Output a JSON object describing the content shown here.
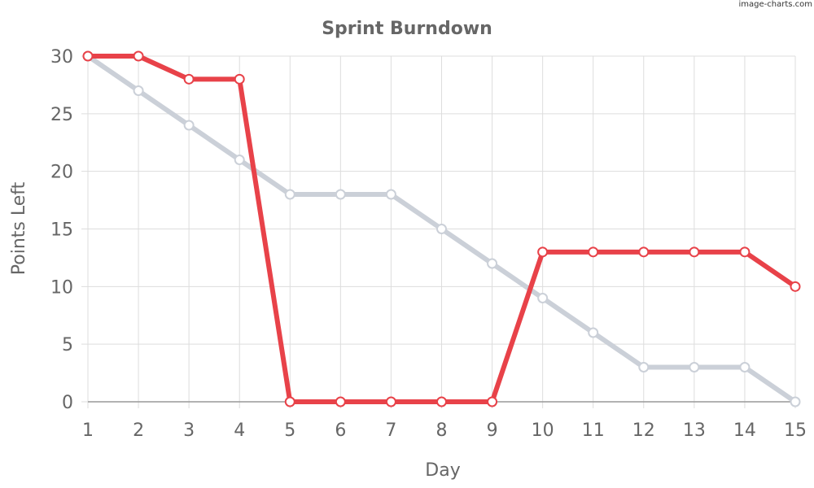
{
  "watermark": "image-charts.com",
  "chart_data": {
    "type": "line",
    "title": "Sprint Burndown",
    "xlabel": "Day",
    "ylabel": "Points Left",
    "x": [
      1,
      2,
      3,
      4,
      5,
      6,
      7,
      8,
      9,
      10,
      11,
      12,
      13,
      14,
      15
    ],
    "xlim": [
      1,
      15
    ],
    "ylim": [
      0,
      30
    ],
    "yticks": [
      0,
      5,
      10,
      15,
      20,
      25,
      30
    ],
    "grid": true,
    "legend": "none",
    "series": [
      {
        "color": "#cbd0d8",
        "values": [
          30,
          27,
          24,
          21,
          18,
          18,
          18,
          15,
          12,
          9,
          6,
          3,
          3,
          3,
          0
        ]
      },
      {
        "color": "#e84249",
        "values": [
          30,
          30,
          28,
          28,
          0,
          0,
          0,
          0,
          0,
          13,
          13,
          13,
          13,
          13,
          10
        ]
      }
    ]
  }
}
